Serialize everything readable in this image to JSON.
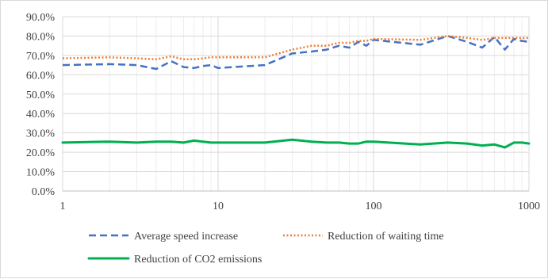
{
  "chart_data": {
    "type": "line",
    "x_scale": "log",
    "xlim": [
      1,
      1000
    ],
    "ylim": [
      0,
      90
    ],
    "grid": true,
    "legend_position": "bottom",
    "x_tick_labels": [
      "1",
      "10",
      "100",
      "1000"
    ],
    "y_tick_labels": [
      "0.0%",
      "10.0%",
      "20.0%",
      "30.0%",
      "40.0%",
      "50.0%",
      "60.0%",
      "70.0%",
      "80.0%",
      "90.0%"
    ],
    "series": [
      {
        "name": "Average speed increase",
        "color": "#4472c4",
        "style": "dashed",
        "x": [
          1,
          2,
          3,
          4,
          5,
          6,
          7,
          8,
          9,
          10,
          20,
          30,
          40,
          50,
          60,
          70,
          80,
          90,
          100,
          200,
          300,
          400,
          500,
          600,
          700,
          800,
          900,
          1000
        ],
        "values": [
          65,
          65.5,
          65,
          63,
          67,
          64,
          63.5,
          64.5,
          65,
          63.5,
          65,
          71,
          72,
          73,
          75,
          74,
          77,
          75,
          78,
          75.5,
          80,
          77,
          74,
          79.5,
          73,
          78.5,
          77.5,
          77
        ]
      },
      {
        "name": "Reduction of waiting time",
        "color": "#ed7d31",
        "style": "dotted",
        "x": [
          1,
          2,
          3,
          4,
          5,
          6,
          7,
          8,
          9,
          10,
          20,
          30,
          40,
          50,
          60,
          70,
          80,
          90,
          100,
          200,
          300,
          400,
          500,
          600,
          700,
          800,
          900,
          1000
        ],
        "values": [
          68.5,
          69,
          68.5,
          68,
          69.5,
          68,
          68,
          68.5,
          69,
          69,
          69,
          73,
          75,
          75,
          76.5,
          76.5,
          77.5,
          77.5,
          78.5,
          78,
          80,
          79,
          78,
          79,
          79,
          79,
          79,
          79
        ]
      },
      {
        "name": "Reduction of CO2 emissions",
        "color": "#00b050",
        "style": "solid",
        "x": [
          1,
          2,
          3,
          4,
          5,
          6,
          7,
          8,
          9,
          10,
          20,
          30,
          40,
          50,
          60,
          70,
          80,
          90,
          100,
          200,
          300,
          400,
          500,
          600,
          700,
          800,
          900,
          1000
        ],
        "values": [
          25,
          25.5,
          25,
          25.5,
          25.5,
          25,
          26,
          25.5,
          25,
          25,
          25,
          26.5,
          25.5,
          25,
          25,
          24.5,
          24.5,
          25.5,
          25.5,
          24,
          25,
          24.5,
          23.5,
          24,
          22.5,
          25,
          25,
          24.5
        ]
      }
    ]
  }
}
